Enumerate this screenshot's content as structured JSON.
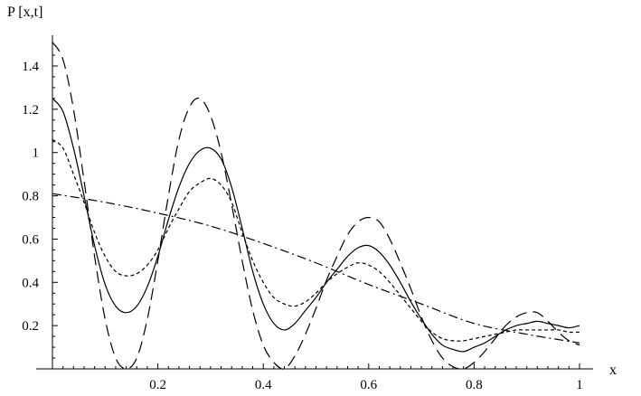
{
  "chart_data": {
    "type": "line",
    "ylabel": "P [x,t]",
    "xlabel": "x",
    "xlim": [
      0,
      1.03
    ],
    "ylim": [
      0,
      1.52
    ],
    "xticks": [
      0.2,
      0.4,
      0.6,
      0.8,
      1
    ],
    "xtick_labels": [
      "0.2",
      "0.4",
      "0.6",
      "0.8",
      "1"
    ],
    "yticks": [
      0.2,
      0.4,
      0.6,
      0.8,
      1,
      1.2,
      1.4
    ],
    "ytick_labels": [
      "0.2",
      "0.4",
      "0.6",
      "0.8",
      "1",
      "1.2",
      "1.4"
    ],
    "grid": false,
    "legend": "none",
    "series": [
      {
        "style": "long-dash",
        "x": [
          0,
          0.02,
          0.04,
          0.06,
          0.08,
          0.1,
          0.12,
          0.14,
          0.16,
          0.18,
          0.2,
          0.22,
          0.24,
          0.26,
          0.28,
          0.3,
          0.32,
          0.34,
          0.36,
          0.38,
          0.4,
          0.42,
          0.44,
          0.46,
          0.48,
          0.5,
          0.52,
          0.54,
          0.56,
          0.58,
          0.6,
          0.62,
          0.64,
          0.66,
          0.68,
          0.7,
          0.72,
          0.74,
          0.76,
          0.78,
          0.8,
          0.82,
          0.84,
          0.86,
          0.88,
          0.9,
          0.92,
          0.94,
          0.96,
          0.98,
          1
        ],
        "y": [
          1.51,
          1.43,
          1.2,
          0.87,
          0.52,
          0.23,
          0.05,
          0.0,
          0.05,
          0.23,
          0.5,
          0.8,
          1.06,
          1.21,
          1.25,
          1.17,
          1.0,
          0.76,
          0.5,
          0.27,
          0.11,
          0.03,
          0.0,
          0.06,
          0.16,
          0.28,
          0.41,
          0.52,
          0.62,
          0.68,
          0.7,
          0.68,
          0.6,
          0.49,
          0.37,
          0.24,
          0.13,
          0.05,
          0.01,
          0.0,
          0.03,
          0.08,
          0.14,
          0.2,
          0.24,
          0.26,
          0.26,
          0.22,
          0.17,
          0.13,
          0.11
        ]
      },
      {
        "style": "solid",
        "x": [
          0,
          0.02,
          0.04,
          0.06,
          0.08,
          0.1,
          0.12,
          0.14,
          0.16,
          0.18,
          0.2,
          0.22,
          0.24,
          0.26,
          0.28,
          0.3,
          0.32,
          0.34,
          0.36,
          0.38,
          0.4,
          0.42,
          0.44,
          0.46,
          0.48,
          0.5,
          0.52,
          0.54,
          0.56,
          0.58,
          0.6,
          0.62,
          0.64,
          0.66,
          0.68,
          0.7,
          0.72,
          0.74,
          0.76,
          0.78,
          0.8,
          0.82,
          0.84,
          0.86,
          0.88,
          0.9,
          0.92,
          0.94,
          0.96,
          0.98,
          1
        ],
        "y": [
          1.25,
          1.19,
          1.02,
          0.8,
          0.57,
          0.39,
          0.29,
          0.26,
          0.29,
          0.38,
          0.52,
          0.69,
          0.84,
          0.95,
          1.01,
          1.02,
          0.97,
          0.84,
          0.65,
          0.45,
          0.3,
          0.21,
          0.18,
          0.21,
          0.27,
          0.33,
          0.4,
          0.46,
          0.52,
          0.56,
          0.57,
          0.54,
          0.48,
          0.4,
          0.31,
          0.23,
          0.16,
          0.11,
          0.09,
          0.08,
          0.1,
          0.12,
          0.15,
          0.18,
          0.2,
          0.21,
          0.22,
          0.21,
          0.2,
          0.19,
          0.2
        ]
      },
      {
        "style": "short-dash",
        "x": [
          0,
          0.02,
          0.04,
          0.06,
          0.08,
          0.1,
          0.12,
          0.14,
          0.16,
          0.18,
          0.2,
          0.22,
          0.24,
          0.26,
          0.28,
          0.3,
          0.32,
          0.34,
          0.36,
          0.38,
          0.4,
          0.42,
          0.44,
          0.46,
          0.48,
          0.5,
          0.52,
          0.54,
          0.56,
          0.58,
          0.6,
          0.62,
          0.64,
          0.66,
          0.68,
          0.7,
          0.72,
          0.74,
          0.76,
          0.78,
          0.8,
          0.82,
          0.84,
          0.86,
          0.88,
          0.9,
          0.92,
          0.94,
          0.96,
          0.98,
          1
        ],
        "y": [
          1.06,
          1.02,
          0.9,
          0.77,
          0.63,
          0.52,
          0.45,
          0.43,
          0.44,
          0.48,
          0.55,
          0.65,
          0.74,
          0.82,
          0.86,
          0.88,
          0.85,
          0.77,
          0.63,
          0.5,
          0.4,
          0.33,
          0.3,
          0.29,
          0.31,
          0.35,
          0.4,
          0.44,
          0.47,
          0.49,
          0.48,
          0.45,
          0.4,
          0.34,
          0.28,
          0.22,
          0.17,
          0.14,
          0.13,
          0.13,
          0.14,
          0.15,
          0.16,
          0.17,
          0.18,
          0.18,
          0.18,
          0.18,
          0.18,
          0.17,
          0.17
        ]
      },
      {
        "style": "dash-dot",
        "x": [
          0,
          0.1,
          0.2,
          0.3,
          0.4,
          0.5,
          0.6,
          0.7,
          0.8,
          0.9,
          1
        ],
        "y": [
          0.81,
          0.77,
          0.72,
          0.66,
          0.58,
          0.49,
          0.39,
          0.3,
          0.21,
          0.16,
          0.12
        ]
      }
    ]
  }
}
